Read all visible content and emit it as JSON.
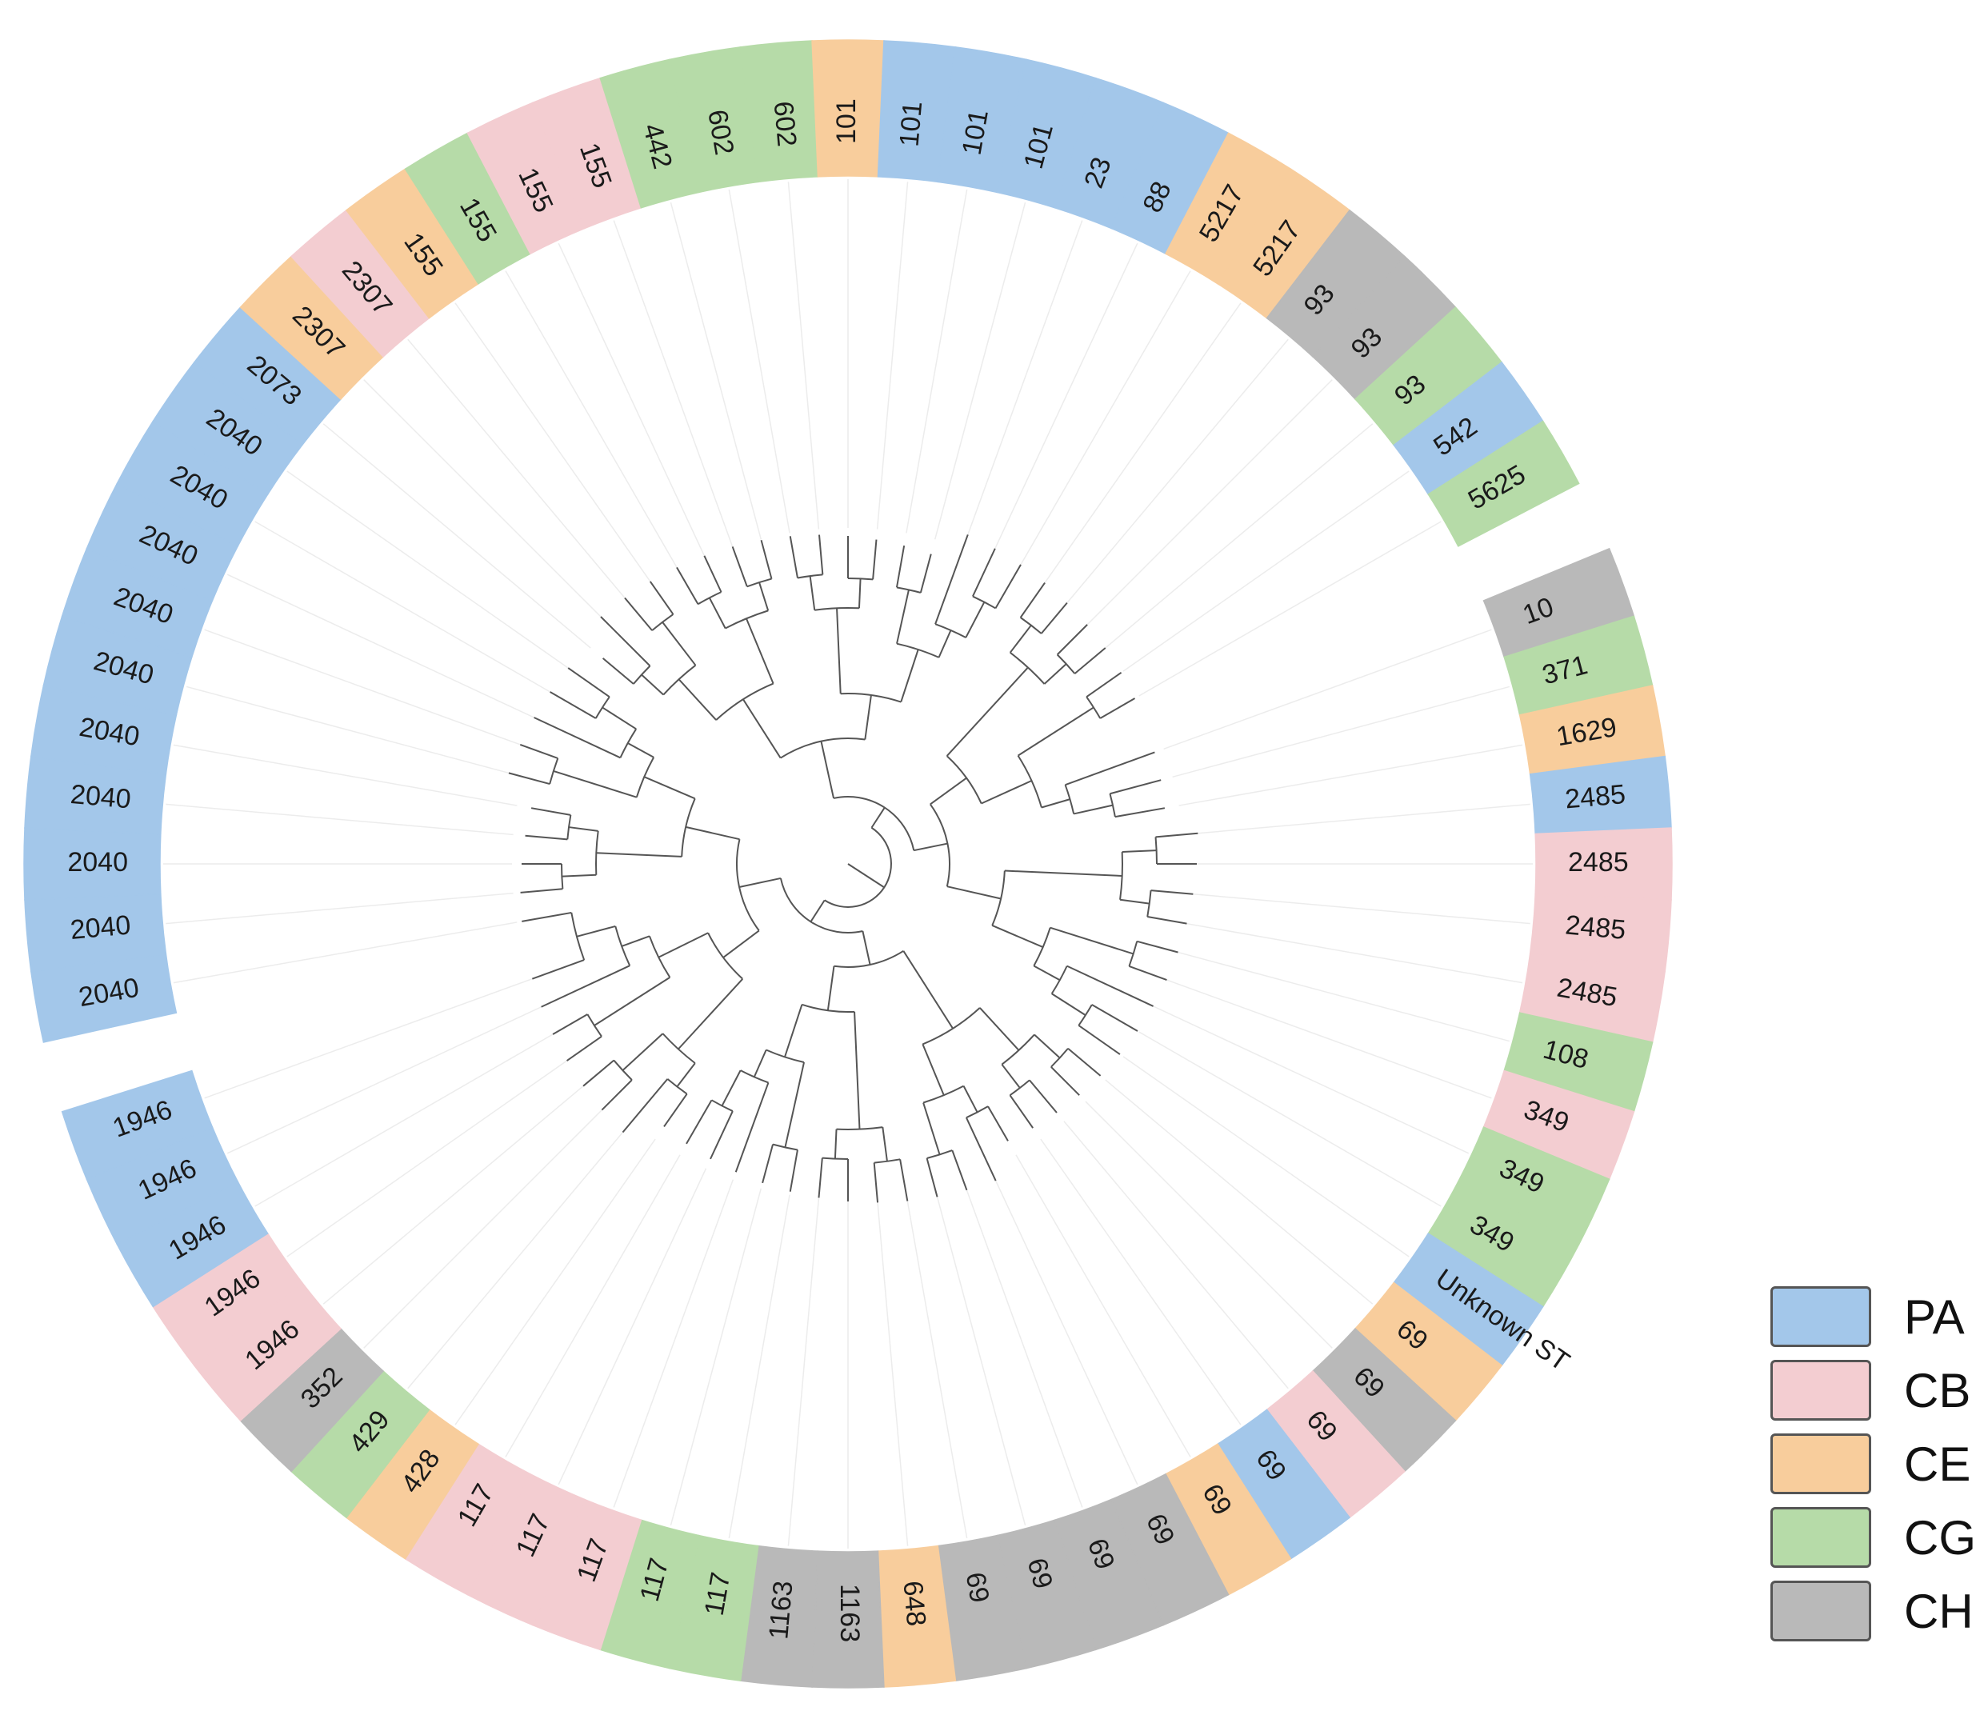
{
  "legend": [
    {
      "key": "PA",
      "label": "PA",
      "color": "#a3c7ea"
    },
    {
      "key": "CB",
      "label": "CB",
      "color": "#f3cdd1"
    },
    {
      "key": "CE",
      "label": "CE",
      "color": "#f8cd9c"
    },
    {
      "key": "CG",
      "label": "CG",
      "color": "#b6dba8"
    },
    {
      "key": "CH",
      "label": "CH",
      "color": "#b9b9b9"
    }
  ],
  "colors": {
    "PA": "#a3c7ea",
    "CB": "#f3cdd1",
    "CE": "#f8cd9c",
    "CG": "#b6dba8",
    "CH": "#b9b9b9",
    "branch": "#555555"
  },
  "leaves": [
    {
      "label": "2073",
      "group": "PA"
    },
    {
      "label": "2307",
      "group": "CE"
    },
    {
      "label": "2307",
      "group": "CB"
    },
    {
      "label": "155",
      "group": "CE"
    },
    {
      "label": "155",
      "group": "CG"
    },
    {
      "label": "155",
      "group": "CB"
    },
    {
      "label": "155",
      "group": "CB"
    },
    {
      "label": "442",
      "group": "CG"
    },
    {
      "label": "602",
      "group": "CG"
    },
    {
      "label": "602",
      "group": "CG"
    },
    {
      "label": "101",
      "group": "CE"
    },
    {
      "label": "101",
      "group": "PA"
    },
    {
      "label": "101",
      "group": "PA"
    },
    {
      "label": "101",
      "group": "PA"
    },
    {
      "label": "23",
      "group": "PA"
    },
    {
      "label": "88",
      "group": "PA"
    },
    {
      "label": "5217",
      "group": "CE"
    },
    {
      "label": "5217",
      "group": "CE"
    },
    {
      "label": "93",
      "group": "CH"
    },
    {
      "label": "93",
      "group": "CH"
    },
    {
      "label": "93",
      "group": "CG"
    },
    {
      "label": "542",
      "group": "PA"
    },
    {
      "label": "5625",
      "group": "CG"
    },
    {
      "label": "",
      "group": "gap"
    },
    {
      "label": "10",
      "group": "CH"
    },
    {
      "label": "371",
      "group": "CG"
    },
    {
      "label": "1629",
      "group": "CE"
    },
    {
      "label": "2485",
      "group": "PA"
    },
    {
      "label": "2485",
      "group": "CB"
    },
    {
      "label": "2485",
      "group": "CB"
    },
    {
      "label": "2485",
      "group": "CB"
    },
    {
      "label": "108",
      "group": "CG"
    },
    {
      "label": "349",
      "group": "CB"
    },
    {
      "label": "349",
      "group": "CG"
    },
    {
      "label": "349",
      "group": "CG"
    },
    {
      "label": "Unknown ST",
      "group": "PA"
    },
    {
      "label": "69",
      "group": "CE"
    },
    {
      "label": "69",
      "group": "CH"
    },
    {
      "label": "69",
      "group": "CB"
    },
    {
      "label": "69",
      "group": "PA"
    },
    {
      "label": "69",
      "group": "CE"
    },
    {
      "label": "69",
      "group": "CH"
    },
    {
      "label": "69",
      "group": "CH"
    },
    {
      "label": "69",
      "group": "CH"
    },
    {
      "label": "69",
      "group": "CH"
    },
    {
      "label": "648",
      "group": "CE"
    },
    {
      "label": "1163",
      "group": "CH"
    },
    {
      "label": "1163",
      "group": "CH"
    },
    {
      "label": "117",
      "group": "CG"
    },
    {
      "label": "117",
      "group": "CG"
    },
    {
      "label": "117",
      "group": "CB"
    },
    {
      "label": "117",
      "group": "CB"
    },
    {
      "label": "117",
      "group": "CB"
    },
    {
      "label": "428",
      "group": "CE"
    },
    {
      "label": "429",
      "group": "CG"
    },
    {
      "label": "352",
      "group": "CH"
    },
    {
      "label": "1946",
      "group": "CB"
    },
    {
      "label": "1946",
      "group": "CB"
    },
    {
      "label": "1946",
      "group": "PA"
    },
    {
      "label": "1946",
      "group": "PA"
    },
    {
      "label": "1946",
      "group": "PA"
    },
    {
      "label": "",
      "group": "gap"
    },
    {
      "label": "2040",
      "group": "PA"
    },
    {
      "label": "2040",
      "group": "PA"
    },
    {
      "label": "2040",
      "group": "PA"
    },
    {
      "label": "2040",
      "group": "PA"
    },
    {
      "label": "2040",
      "group": "PA"
    },
    {
      "label": "2040",
      "group": "PA"
    },
    {
      "label": "2040",
      "group": "PA"
    },
    {
      "label": "2040",
      "group": "PA"
    },
    {
      "label": "2040",
      "group": "PA"
    },
    {
      "label": "2040",
      "group": "PA"
    }
  ]
}
